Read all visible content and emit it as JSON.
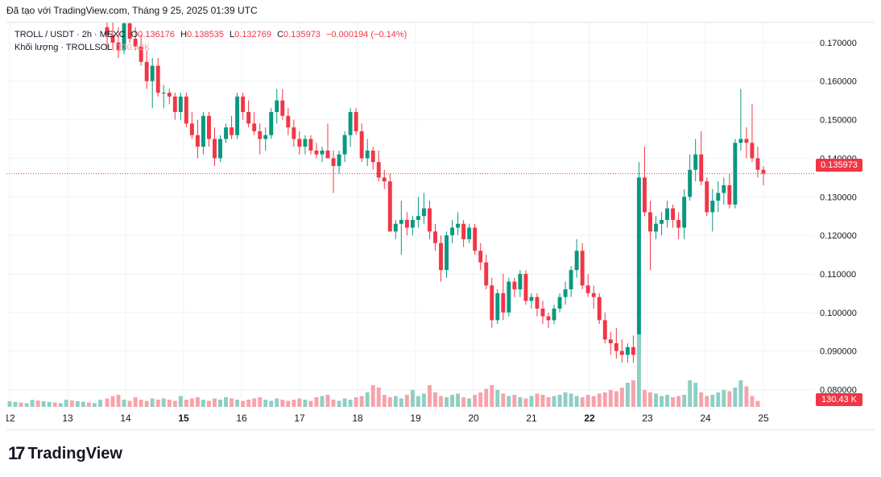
{
  "header": {
    "text": "Đã tạo với TradingView.com, Tháng 9 25, 2025 01:39 UTC"
  },
  "legend": {
    "symbol": "TROLL / USDT · 2h · MEXC",
    "o_label": "O",
    "o_val": "0.136176",
    "h_label": "H",
    "h_val": "0.138535",
    "l_label": "L",
    "l_val": "0.132769",
    "c_label": "C",
    "c_val": "0.135973",
    "change": "−0.000194 (−0.14%)",
    "volume_label": "Khối lượng · TROLLSOL",
    "volume_val": "130.43K"
  },
  "price_tag": "0.135973",
  "volume_tag": "130.43 K",
  "logo": {
    "mark": "17",
    "name": "TradingView"
  },
  "colors": {
    "up": "#089981",
    "down": "#f23645",
    "vol_up": "#8ecfc3",
    "vol_down": "#f7a3ab",
    "grid": "#f0f3fa"
  },
  "chart_data": {
    "type": "candlestick",
    "y_ticks": [
      "0.170000",
      "0.160000",
      "0.150000",
      "0.140000",
      "0.130000",
      "0.120000",
      "0.110000",
      "0.100000",
      "0.090000",
      "0.080000"
    ],
    "y_tick_values": [
      0.17,
      0.16,
      0.15,
      0.14,
      0.13,
      0.12,
      0.11,
      0.1,
      0.09,
      0.08
    ],
    "x_ticks": [
      "12",
      "13",
      "14",
      "15",
      "16",
      "17",
      "18",
      "19",
      "20",
      "21",
      "22",
      "23",
      "24",
      "25"
    ],
    "bold_x_ticks": [
      "15",
      "22"
    ],
    "ylim": [
      0.0755,
      0.1752
    ],
    "last_price": 0.135973,
    "ohlc": [
      [
        0.174,
        0.176,
        0.168,
        0.172
      ],
      [
        0.172,
        0.176,
        0.168,
        0.17
      ],
      [
        0.17,
        0.174,
        0.166,
        0.168
      ],
      [
        0.168,
        0.176,
        0.167,
        0.175
      ],
      [
        0.175,
        0.178,
        0.17,
        0.171
      ],
      [
        0.171,
        0.174,
        0.168,
        0.169
      ],
      [
        0.169,
        0.172,
        0.164,
        0.165
      ],
      [
        0.165,
        0.168,
        0.158,
        0.16
      ],
      [
        0.16,
        0.166,
        0.153,
        0.164
      ],
      [
        0.164,
        0.166,
        0.156,
        0.157
      ],
      [
        0.157,
        0.159,
        0.153,
        0.157
      ],
      [
        0.157,
        0.158,
        0.154,
        0.156
      ],
      [
        0.156,
        0.157,
        0.15,
        0.152
      ],
      [
        0.152,
        0.157,
        0.15,
        0.156
      ],
      [
        0.156,
        0.157,
        0.148,
        0.149
      ],
      [
        0.149,
        0.152,
        0.145,
        0.146
      ],
      [
        0.146,
        0.15,
        0.14,
        0.143
      ],
      [
        0.143,
        0.152,
        0.141,
        0.151
      ],
      [
        0.151,
        0.152,
        0.143,
        0.145
      ],
      [
        0.145,
        0.148,
        0.138,
        0.14
      ],
      [
        0.14,
        0.146,
        0.139,
        0.145
      ],
      [
        0.145,
        0.149,
        0.144,
        0.148
      ],
      [
        0.148,
        0.151,
        0.145,
        0.146
      ],
      [
        0.146,
        0.157,
        0.145,
        0.156
      ],
      [
        0.156,
        0.157,
        0.15,
        0.152
      ],
      [
        0.152,
        0.155,
        0.148,
        0.149
      ],
      [
        0.149,
        0.152,
        0.146,
        0.147
      ],
      [
        0.147,
        0.149,
        0.141,
        0.145
      ],
      [
        0.145,
        0.148,
        0.142,
        0.146
      ],
      [
        0.146,
        0.153,
        0.145,
        0.152
      ],
      [
        0.152,
        0.158,
        0.149,
        0.155
      ],
      [
        0.155,
        0.158,
        0.15,
        0.151
      ],
      [
        0.151,
        0.153,
        0.146,
        0.148
      ],
      [
        0.148,
        0.15,
        0.143,
        0.145
      ],
      [
        0.145,
        0.147,
        0.141,
        0.143
      ],
      [
        0.143,
        0.146,
        0.141,
        0.145
      ],
      [
        0.145,
        0.146,
        0.141,
        0.142
      ],
      [
        0.142,
        0.144,
        0.14,
        0.141
      ],
      [
        0.141,
        0.143,
        0.139,
        0.142
      ],
      [
        0.142,
        0.149,
        0.14,
        0.14
      ],
      [
        0.14,
        0.142,
        0.131,
        0.138
      ],
      [
        0.138,
        0.142,
        0.136,
        0.141
      ],
      [
        0.141,
        0.147,
        0.139,
        0.146
      ],
      [
        0.146,
        0.153,
        0.143,
        0.152
      ],
      [
        0.152,
        0.153,
        0.146,
        0.147
      ],
      [
        0.147,
        0.149,
        0.139,
        0.14
      ],
      [
        0.14,
        0.145,
        0.138,
        0.142
      ],
      [
        0.142,
        0.143,
        0.137,
        0.139
      ],
      [
        0.139,
        0.142,
        0.134,
        0.135
      ],
      [
        0.135,
        0.137,
        0.132,
        0.134
      ],
      [
        0.134,
        0.136,
        0.121,
        0.121
      ],
      [
        0.121,
        0.124,
        0.119,
        0.123
      ],
      [
        0.123,
        0.129,
        0.115,
        0.124
      ],
      [
        0.124,
        0.126,
        0.12,
        0.122
      ],
      [
        0.122,
        0.125,
        0.12,
        0.124
      ],
      [
        0.124,
        0.13,
        0.122,
        0.125
      ],
      [
        0.125,
        0.131,
        0.123,
        0.127
      ],
      [
        0.127,
        0.129,
        0.119,
        0.121
      ],
      [
        0.121,
        0.123,
        0.116,
        0.118
      ],
      [
        0.118,
        0.12,
        0.108,
        0.111
      ],
      [
        0.111,
        0.121,
        0.109,
        0.12
      ],
      [
        0.12,
        0.124,
        0.118,
        0.122
      ],
      [
        0.122,
        0.126,
        0.12,
        0.123
      ],
      [
        0.123,
        0.124,
        0.117,
        0.119
      ],
      [
        0.119,
        0.123,
        0.118,
        0.122
      ],
      [
        0.122,
        0.123,
        0.115,
        0.116
      ],
      [
        0.116,
        0.118,
        0.111,
        0.113
      ],
      [
        0.113,
        0.115,
        0.106,
        0.107
      ],
      [
        0.107,
        0.109,
        0.096,
        0.098
      ],
      [
        0.098,
        0.106,
        0.097,
        0.105
      ],
      [
        0.105,
        0.11,
        0.098,
        0.1
      ],
      [
        0.1,
        0.109,
        0.099,
        0.108
      ],
      [
        0.108,
        0.109,
        0.104,
        0.106
      ],
      [
        0.106,
        0.111,
        0.104,
        0.11
      ],
      [
        0.11,
        0.111,
        0.102,
        0.103
      ],
      [
        0.103,
        0.105,
        0.101,
        0.104
      ],
      [
        0.104,
        0.105,
        0.099,
        0.101
      ],
      [
        0.101,
        0.103,
        0.097,
        0.099
      ],
      [
        0.099,
        0.1,
        0.096,
        0.098
      ],
      [
        0.098,
        0.102,
        0.097,
        0.101
      ],
      [
        0.101,
        0.105,
        0.1,
        0.104
      ],
      [
        0.104,
        0.108,
        0.102,
        0.106
      ],
      [
        0.106,
        0.112,
        0.104,
        0.111
      ],
      [
        0.111,
        0.119,
        0.109,
        0.116
      ],
      [
        0.116,
        0.118,
        0.106,
        0.107
      ],
      [
        0.107,
        0.11,
        0.104,
        0.105
      ],
      [
        0.105,
        0.107,
        0.101,
        0.104
      ],
      [
        0.104,
        0.105,
        0.097,
        0.098
      ],
      [
        0.098,
        0.1,
        0.092,
        0.093
      ],
      [
        0.093,
        0.095,
        0.089,
        0.092
      ],
      [
        0.092,
        0.096,
        0.088,
        0.09
      ],
      [
        0.09,
        0.093,
        0.087,
        0.089
      ],
      [
        0.089,
        0.092,
        0.087,
        0.091
      ],
      [
        0.091,
        0.094,
        0.087,
        0.089
      ],
      [
        0.089,
        0.139,
        0.089,
        0.135
      ],
      [
        0.135,
        0.143,
        0.125,
        0.126
      ],
      [
        0.126,
        0.129,
        0.111,
        0.121
      ],
      [
        0.121,
        0.125,
        0.119,
        0.123
      ],
      [
        0.123,
        0.126,
        0.12,
        0.124
      ],
      [
        0.124,
        0.129,
        0.122,
        0.127
      ],
      [
        0.127,
        0.128,
        0.122,
        0.124
      ],
      [
        0.124,
        0.126,
        0.119,
        0.122
      ],
      [
        0.122,
        0.132,
        0.119,
        0.13
      ],
      [
        0.13,
        0.141,
        0.129,
        0.137
      ],
      [
        0.137,
        0.145,
        0.134,
        0.141
      ],
      [
        0.141,
        0.147,
        0.133,
        0.134
      ],
      [
        0.134,
        0.135,
        0.125,
        0.126
      ],
      [
        0.126,
        0.132,
        0.121,
        0.129
      ],
      [
        0.129,
        0.134,
        0.126,
        0.131
      ],
      [
        0.131,
        0.135,
        0.128,
        0.133
      ],
      [
        0.133,
        0.136,
        0.127,
        0.128
      ],
      [
        0.128,
        0.145,
        0.127,
        0.144
      ],
      [
        0.144,
        0.158,
        0.142,
        0.145
      ],
      [
        0.145,
        0.148,
        0.14,
        0.144
      ],
      [
        0.144,
        0.154,
        0.139,
        0.14
      ],
      [
        0.14,
        0.143,
        0.135,
        0.137
      ],
      [
        0.137,
        0.138,
        0.133,
        0.136
      ]
    ],
    "volume": [
      7,
      9,
      10,
      6,
      5,
      8,
      6,
      5,
      7,
      6,
      7,
      6,
      5,
      9,
      6,
      7,
      8,
      6,
      5,
      7,
      6,
      8,
      7,
      6,
      5,
      6,
      7,
      8,
      6,
      5,
      7,
      6,
      5,
      6,
      7,
      6,
      5,
      8,
      9,
      10,
      6,
      5,
      7,
      6,
      8,
      9,
      12,
      18,
      16,
      10,
      8,
      9,
      7,
      10,
      14,
      9,
      11,
      18,
      12,
      9,
      8,
      10,
      11,
      8,
      7,
      10,
      12,
      15,
      18,
      14,
      11,
      9,
      10,
      8,
      7,
      9,
      11,
      10,
      8,
      9,
      10,
      12,
      11,
      9,
      8,
      10,
      9,
      11,
      12,
      14,
      13,
      16,
      20,
      22,
      60,
      14,
      12,
      11,
      9,
      10,
      8,
      9,
      10,
      22,
      20,
      12,
      9,
      10,
      12,
      14,
      13,
      16,
      22,
      17,
      9,
      5
    ]
  }
}
